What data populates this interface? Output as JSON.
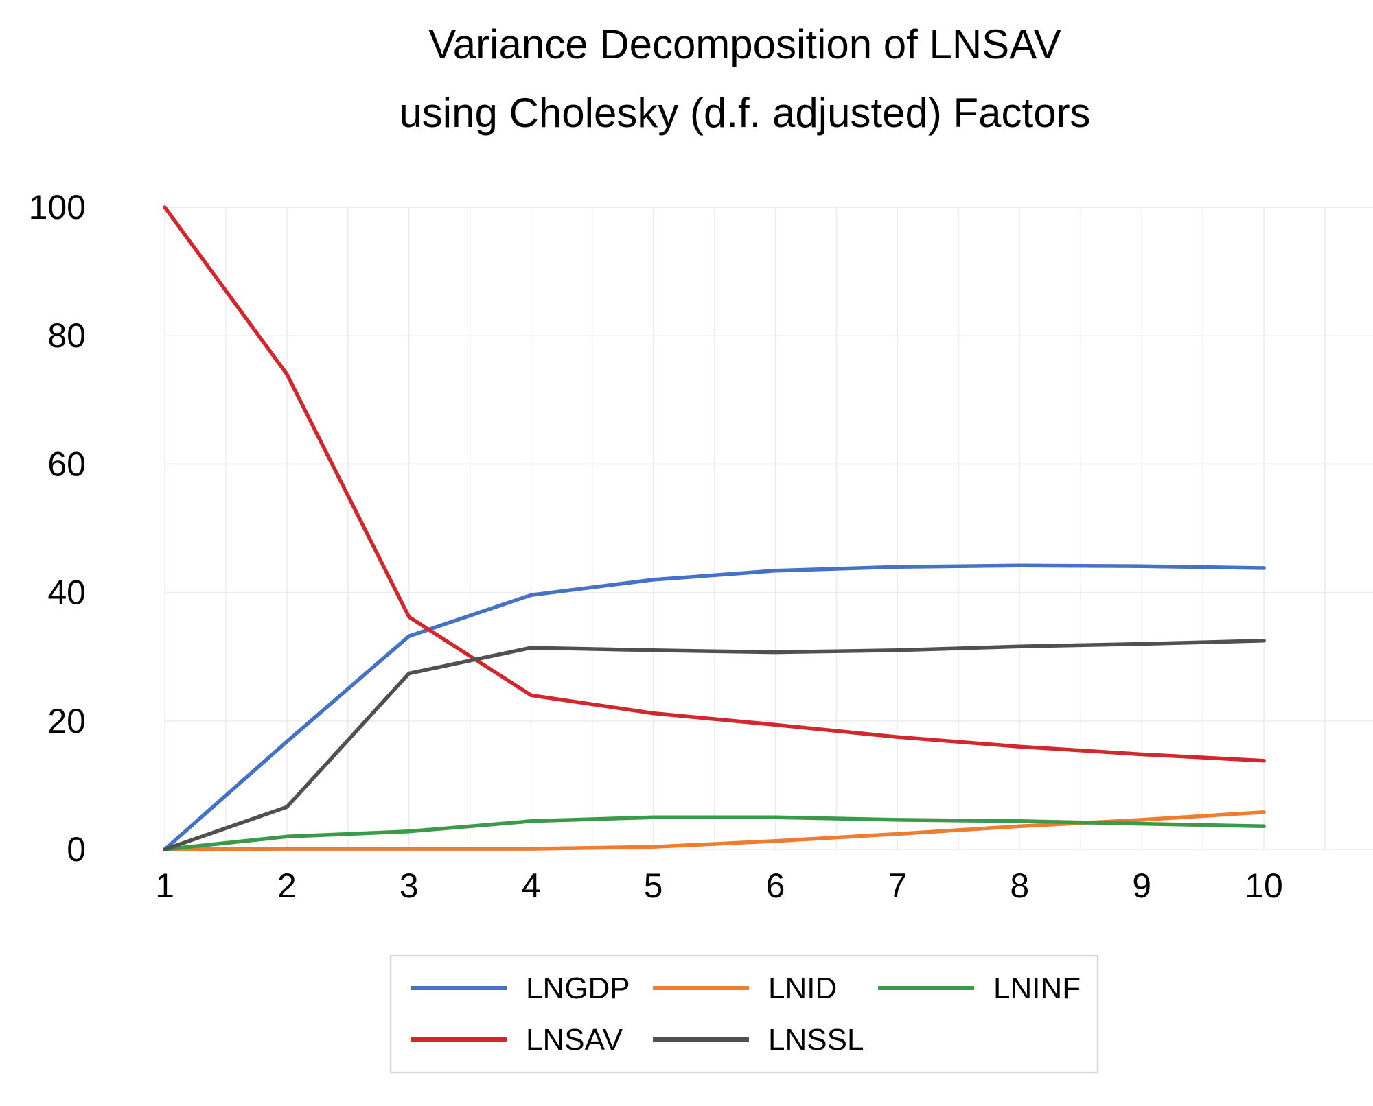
{
  "chart_data": {
    "type": "line",
    "title_lines": [
      "Variance Decomposition of LNSAV",
      "using Cholesky (d.f. adjusted) Factors"
    ],
    "x": [
      1,
      2,
      3,
      4,
      5,
      6,
      7,
      8,
      9,
      10
    ],
    "x_tick_labels": [
      "1",
      "2",
      "3",
      "4",
      "5",
      "6",
      "7",
      "8",
      "9",
      "10"
    ],
    "ylim": [
      0,
      100
    ],
    "y_ticks": [
      0,
      20,
      40,
      60,
      80,
      100
    ],
    "y_tick_labels": [
      "0",
      "20",
      "40",
      "60",
      "80",
      "100"
    ],
    "grid": true,
    "legend_position": "bottom",
    "series": [
      {
        "name": "LNGDP",
        "color": "#4472C4",
        "values": [
          0,
          16.8,
          33.2,
          39.6,
          42.0,
          43.4,
          44.0,
          44.2,
          44.1,
          43.8
        ]
      },
      {
        "name": "LNID",
        "color": "#ED7D31",
        "values": [
          0,
          0.1,
          0.1,
          0.1,
          0.4,
          1.3,
          2.4,
          3.6,
          4.6,
          5.8
        ]
      },
      {
        "name": "LNINF",
        "color": "#3A9A4A",
        "values": [
          0,
          2.0,
          2.8,
          4.4,
          5.0,
          5.0,
          4.6,
          4.4,
          4.0,
          3.6
        ]
      },
      {
        "name": "LNSAV",
        "color": "#D1282E",
        "values": [
          100,
          74.0,
          36.2,
          24.0,
          21.2,
          19.4,
          17.5,
          16.0,
          14.8,
          13.8
        ]
      },
      {
        "name": "LNSSL",
        "color": "#505050",
        "values": [
          0,
          6.6,
          27.4,
          31.4,
          31.0,
          30.7,
          31.0,
          31.6,
          32.0,
          32.5
        ]
      }
    ]
  }
}
